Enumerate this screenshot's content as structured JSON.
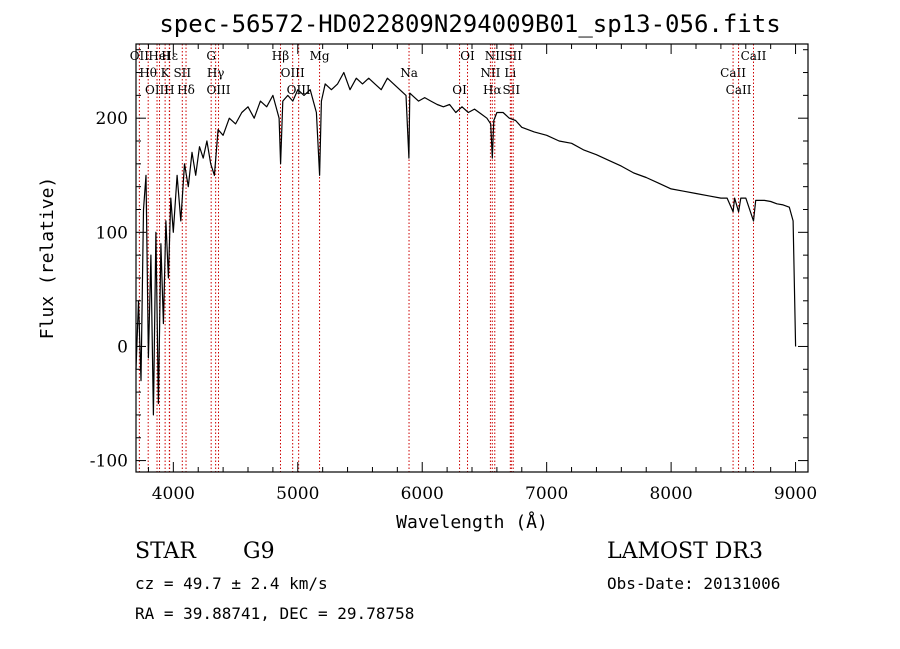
{
  "chart_data": {
    "type": "line",
    "title": "spec-56572-HD022809N294009B01_sp13-056.fits",
    "xlabel": "Wavelength (Å)",
    "ylabel": "Flux (relative)",
    "xlim": [
      3700,
      9100
    ],
    "ylim": [
      -110,
      265
    ],
    "x_ticks": [
      4000,
      5000,
      6000,
      7000,
      8000,
      9000
    ],
    "y_ticks": [
      -100,
      0,
      100,
      200
    ],
    "series": [
      {
        "name": "flux",
        "x": [
          3700,
          3720,
          3740,
          3760,
          3780,
          3800,
          3820,
          3840,
          3860,
          3880,
          3900,
          3920,
          3940,
          3960,
          3980,
          4000,
          4030,
          4060,
          4090,
          4120,
          4150,
          4180,
          4210,
          4240,
          4270,
          4300,
          4330,
          4360,
          4400,
          4450,
          4500,
          4550,
          4600,
          4650,
          4700,
          4750,
          4800,
          4850,
          4862,
          4880,
          4920,
          4960,
          5000,
          5050,
          5100,
          5150,
          5175,
          5190,
          5220,
          5270,
          5320,
          5370,
          5420,
          5470,
          5520,
          5570,
          5620,
          5670,
          5720,
          5770,
          5820,
          5870,
          5893,
          5900,
          5920,
          5970,
          6020,
          6070,
          6120,
          6170,
          6220,
          6270,
          6320,
          6370,
          6420,
          6470,
          6520,
          6550,
          6563,
          6575,
          6600,
          6650,
          6700,
          6750,
          6800,
          6900,
          7000,
          7100,
          7200,
          7300,
          7400,
          7500,
          7600,
          7700,
          7800,
          7900,
          8000,
          8100,
          8200,
          8300,
          8400,
          8450,
          8498,
          8510,
          8542,
          8560,
          8600,
          8662,
          8680,
          8750,
          8800,
          8850,
          8900,
          8950,
          8980,
          9000
        ],
        "values": [
          -20,
          40,
          -30,
          120,
          150,
          -10,
          80,
          -60,
          100,
          -50,
          90,
          20,
          110,
          60,
          130,
          100,
          150,
          110,
          160,
          140,
          170,
          150,
          175,
          165,
          180,
          160,
          150,
          190,
          185,
          200,
          195,
          205,
          210,
          200,
          215,
          210,
          220,
          200,
          160,
          215,
          220,
          215,
          225,
          220,
          225,
          205,
          150,
          215,
          230,
          225,
          230,
          240,
          225,
          235,
          230,
          235,
          230,
          225,
          235,
          230,
          225,
          220,
          165,
          222,
          220,
          215,
          218,
          215,
          212,
          210,
          212,
          205,
          210,
          205,
          208,
          204,
          200,
          195,
          165,
          198,
          205,
          205,
          200,
          198,
          192,
          188,
          185,
          180,
          178,
          172,
          168,
          163,
          158,
          152,
          148,
          143,
          138,
          136,
          134,
          132,
          130,
          130,
          118,
          130,
          118,
          130,
          130,
          110,
          128,
          128,
          127,
          125,
          124,
          122,
          110,
          0
        ]
      }
    ],
    "spectral_lines": [
      {
        "label": "OII",
        "x": 3727
      },
      {
        "label": "Hθ",
        "x": 3798
      },
      {
        "label": "OIII",
        "x": 3869
      },
      {
        "label": "HeI",
        "x": 3889
      },
      {
        "label": "K",
        "x": 3934
      },
      {
        "label": "H",
        "x": 3968
      },
      {
        "label": "Hε",
        "x": 3970
      },
      {
        "label": "SII",
        "x": 4072
      },
      {
        "label": "Hδ",
        "x": 4102
      },
      {
        "label": "G",
        "x": 4304
      },
      {
        "label": "Hγ",
        "x": 4340
      },
      {
        "label": "OIII",
        "x": 4363
      },
      {
        "label": "Hβ",
        "x": 4861
      },
      {
        "label": "OIII",
        "x": 4959
      },
      {
        "label": "OIII",
        "x": 5007
      },
      {
        "label": "Mg",
        "x": 5175
      },
      {
        "label": "Na",
        "x": 5894
      },
      {
        "label": "OI",
        "x": 6300
      },
      {
        "label": "OI",
        "x": 6364
      },
      {
        "label": "NII",
        "x": 6548
      },
      {
        "label": "Hα",
        "x": 6563
      },
      {
        "label": "NII",
        "x": 6583
      },
      {
        "label": "Li",
        "x": 6708
      },
      {
        "label": "SII",
        "x": 6716
      },
      {
        "label": "SII",
        "x": 6731
      },
      {
        "label": "CaII",
        "x": 8498
      },
      {
        "label": "CaII",
        "x": 8542
      },
      {
        "label": "CaII",
        "x": 8662
      }
    ]
  },
  "info": {
    "object_class": "STAR",
    "subclass": "G9",
    "survey": "LAMOST DR3",
    "redshift": "cz = 49.7 ± 2.4 km/s",
    "obs_date": "Obs-Date: 20131006",
    "coords": "RA =  39.88741, DEC =  29.78758"
  },
  "colors": {
    "line_marker": "#cc0000",
    "spectrum": "#000000",
    "axes": "#000000"
  }
}
